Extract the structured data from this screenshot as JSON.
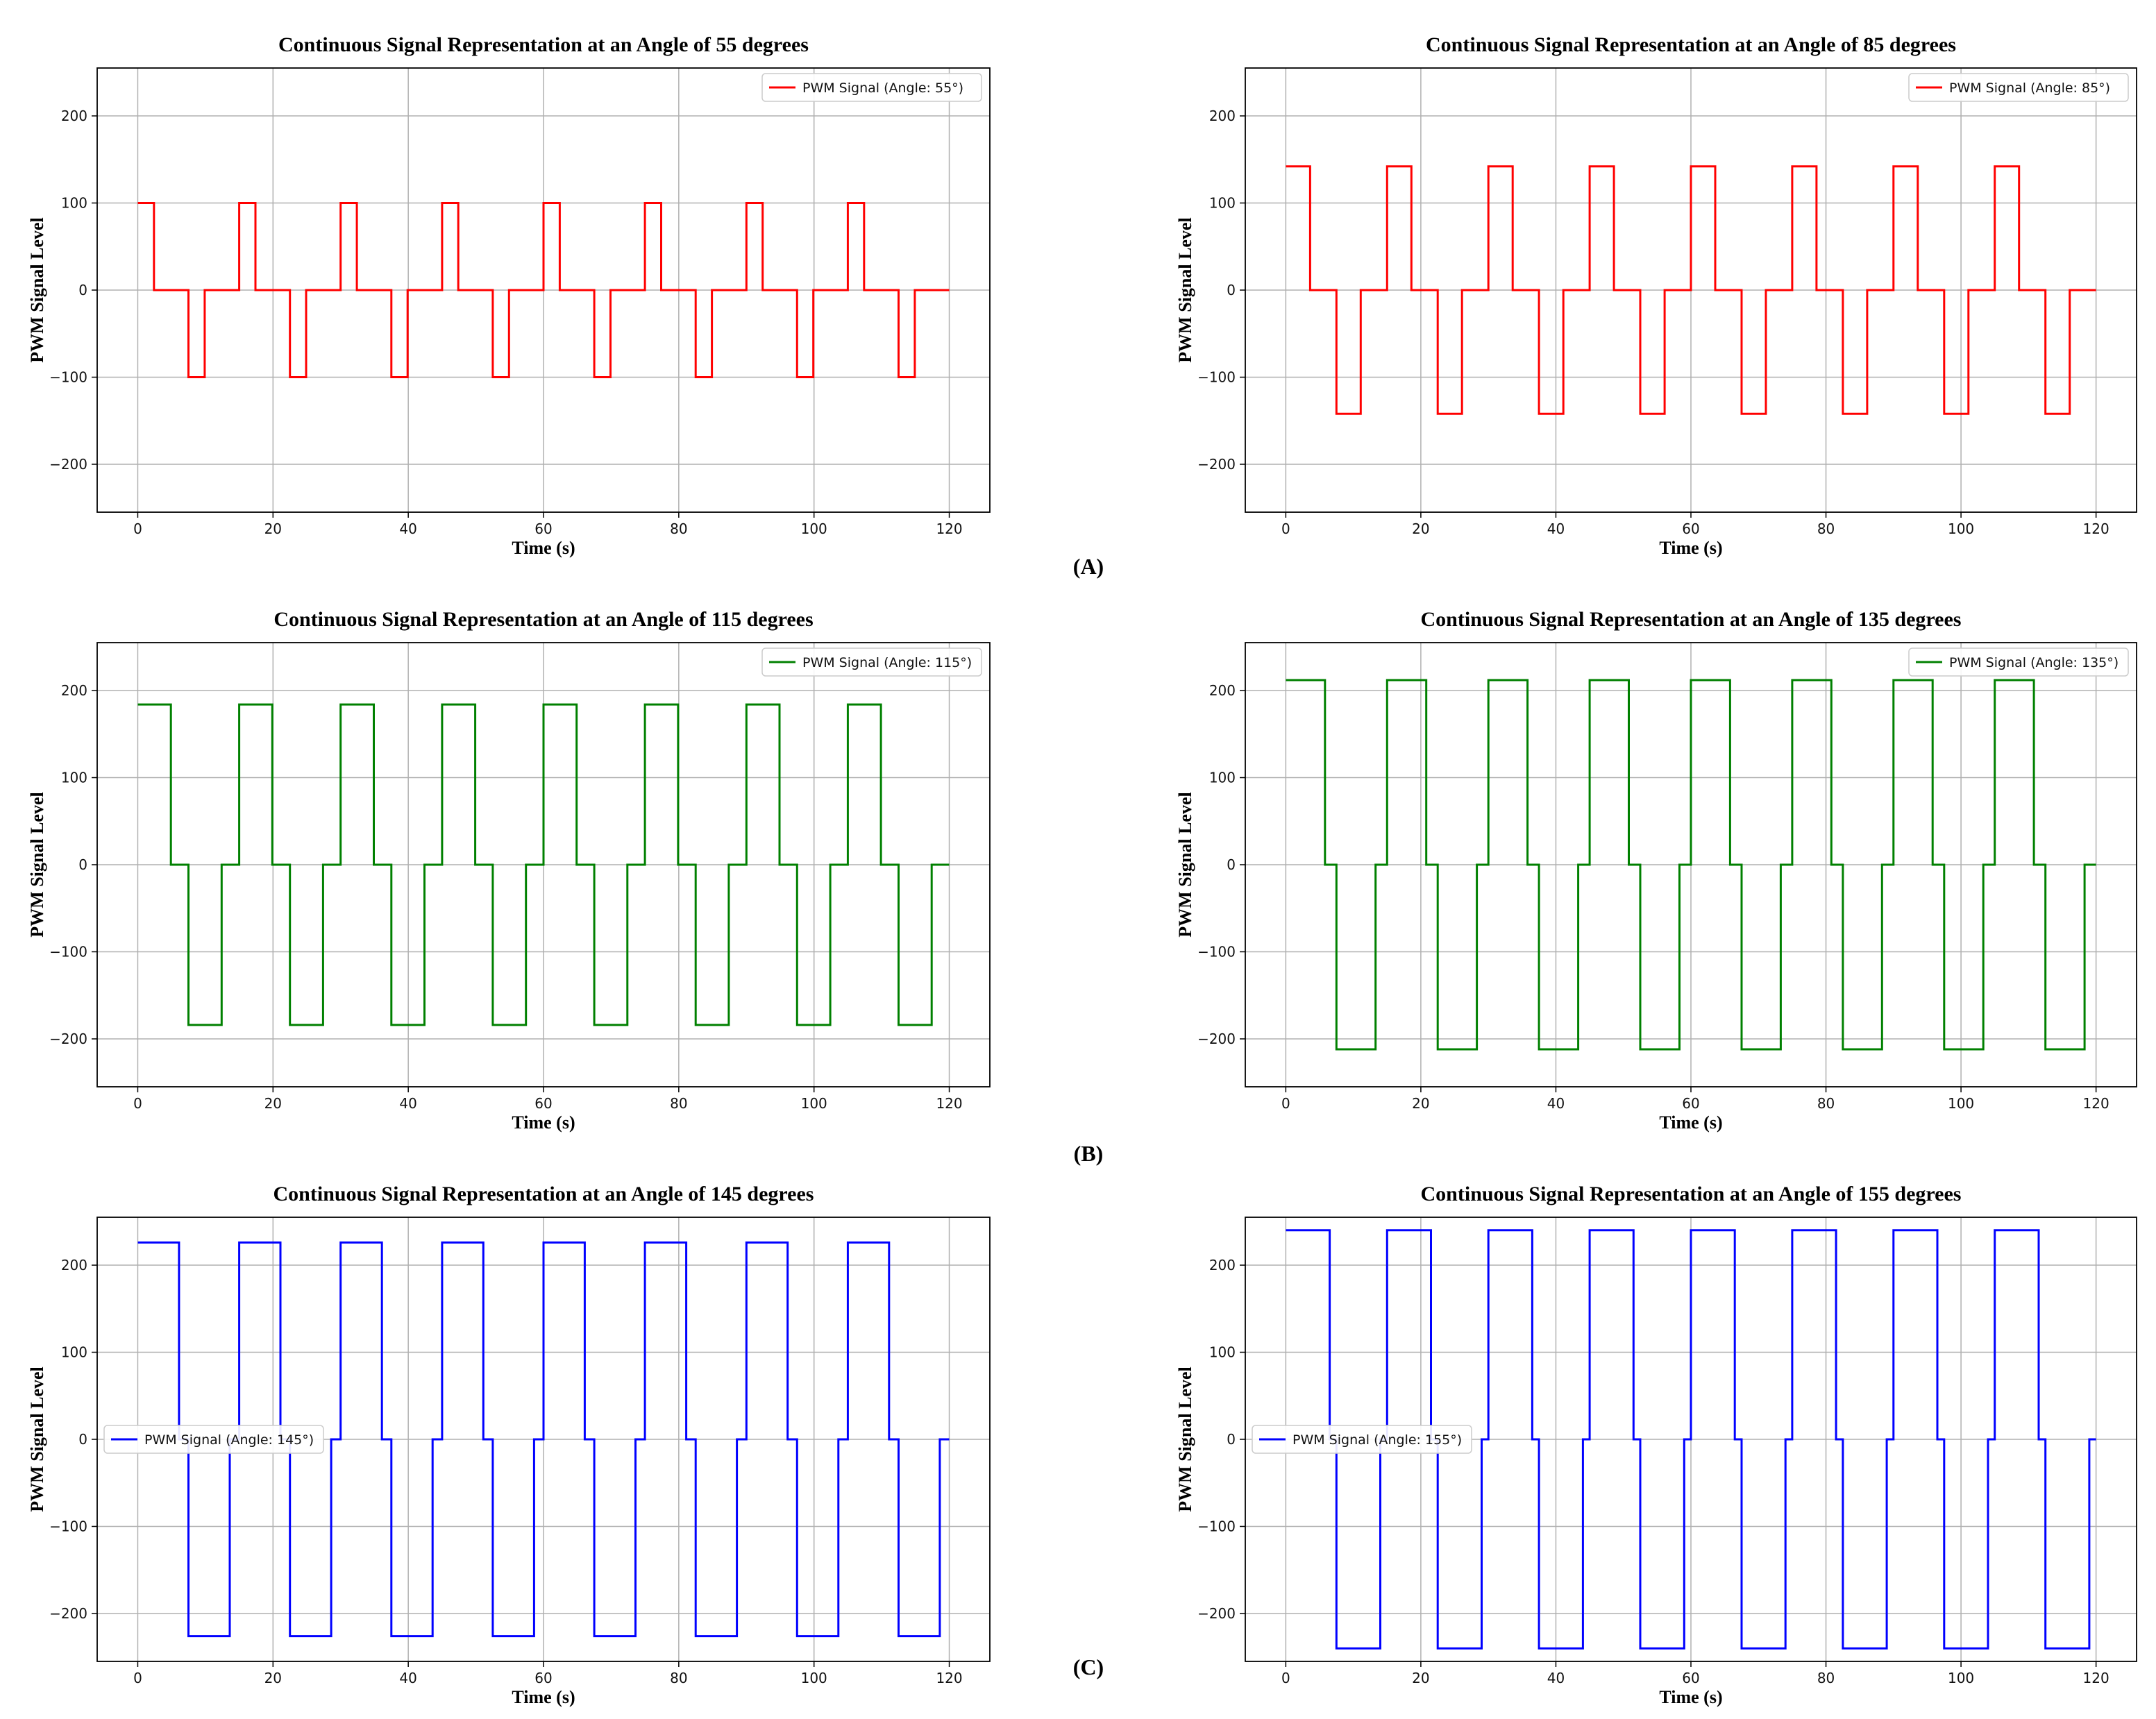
{
  "panel_labels": [
    "(A)",
    "(B)",
    "(C)"
  ],
  "colors": {
    "red": "#ff0000",
    "green": "#008000",
    "blue": "#0000ff",
    "grid": "#b0b0b0",
    "frame": "#000000"
  },
  "chart_data": [
    {
      "type": "line",
      "title": "Continuous Signal Representation at an Angle of 55 degrees",
      "xlabel": "Time (s)",
      "ylabel": "PWM Signal Level",
      "legend": "PWM Signal (Angle: 55°)",
      "legend_loc": "upper right",
      "color": "red",
      "xlim": [
        -6,
        126
      ],
      "ylim": [
        -255,
        255
      ],
      "grid": true,
      "xticks": [
        0,
        20,
        40,
        60,
        80,
        100,
        120
      ],
      "yticks": [
        -200,
        -100,
        0,
        100,
        200
      ],
      "amplitude": 100,
      "period": 15,
      "pos_width": 2.4,
      "neg_start": 7.5,
      "neg_width": 2.4,
      "t_end": 120
    },
    {
      "type": "line",
      "title": "Continuous Signal Representation at an Angle of 85 degrees",
      "xlabel": "Time (s)",
      "ylabel": "PWM Signal Level",
      "legend": "PWM Signal (Angle: 85°)",
      "legend_loc": "upper right",
      "color": "red",
      "xlim": [
        -6,
        126
      ],
      "ylim": [
        -255,
        255
      ],
      "grid": true,
      "xticks": [
        0,
        20,
        40,
        60,
        80,
        100,
        120
      ],
      "yticks": [
        -200,
        -100,
        0,
        100,
        200
      ],
      "amplitude": 142,
      "period": 15,
      "pos_width": 3.6,
      "neg_start": 7.5,
      "neg_width": 3.6,
      "t_end": 120
    },
    {
      "type": "line",
      "title": "Continuous Signal Representation at an Angle of 115 degrees",
      "xlabel": "Time (s)",
      "ylabel": "PWM Signal Level",
      "legend": "PWM Signal (Angle: 115°)",
      "legend_loc": "upper right",
      "color": "green",
      "xlim": [
        -6,
        126
      ],
      "ylim": [
        -255,
        255
      ],
      "grid": true,
      "xticks": [
        0,
        20,
        40,
        60,
        80,
        100,
        120
      ],
      "yticks": [
        -200,
        -100,
        0,
        100,
        200
      ],
      "amplitude": 184,
      "period": 15,
      "pos_width": 4.9,
      "neg_start": 7.5,
      "neg_width": 4.9,
      "t_end": 120
    },
    {
      "type": "line",
      "title": "Continuous Signal Representation at an Angle of 135 degrees",
      "xlabel": "Time (s)",
      "ylabel": "PWM Signal Level",
      "legend": "PWM Signal (Angle: 135°)",
      "legend_loc": "upper right",
      "color": "green",
      "xlim": [
        -6,
        126
      ],
      "ylim": [
        -255,
        255
      ],
      "grid": true,
      "xticks": [
        0,
        20,
        40,
        60,
        80,
        100,
        120
      ],
      "yticks": [
        -200,
        -100,
        0,
        100,
        200
      ],
      "amplitude": 212,
      "period": 15,
      "pos_width": 5.8,
      "neg_start": 7.5,
      "neg_width": 5.8,
      "t_end": 120
    },
    {
      "type": "line",
      "title": "Continuous Signal Representation at an Angle of 145 degrees",
      "xlabel": "Time (s)",
      "ylabel": "PWM Signal Level",
      "legend": "PWM Signal (Angle: 145°)",
      "legend_loc": "center left",
      "color": "blue",
      "xlim": [
        -6,
        126
      ],
      "ylim": [
        -255,
        255
      ],
      "grid": true,
      "xticks": [
        0,
        20,
        40,
        60,
        80,
        100,
        120
      ],
      "yticks": [
        -200,
        -100,
        0,
        100,
        200
      ],
      "amplitude": 226,
      "period": 15,
      "pos_width": 6.1,
      "neg_start": 7.5,
      "neg_width": 6.1,
      "t_end": 120
    },
    {
      "type": "line",
      "title": "Continuous Signal Representation at an Angle of 155 degrees",
      "xlabel": "Time (s)",
      "ylabel": "PWM Signal Level",
      "legend": "PWM Signal (Angle: 155°)",
      "legend_loc": "center left",
      "color": "blue",
      "xlim": [
        -6,
        126
      ],
      "ylim": [
        -255,
        255
      ],
      "grid": true,
      "xticks": [
        0,
        20,
        40,
        60,
        80,
        100,
        120
      ],
      "yticks": [
        -200,
        -100,
        0,
        100,
        200
      ],
      "amplitude": 240,
      "period": 15,
      "pos_width": 6.5,
      "neg_start": 7.5,
      "neg_width": 6.5,
      "t_end": 120
    }
  ]
}
